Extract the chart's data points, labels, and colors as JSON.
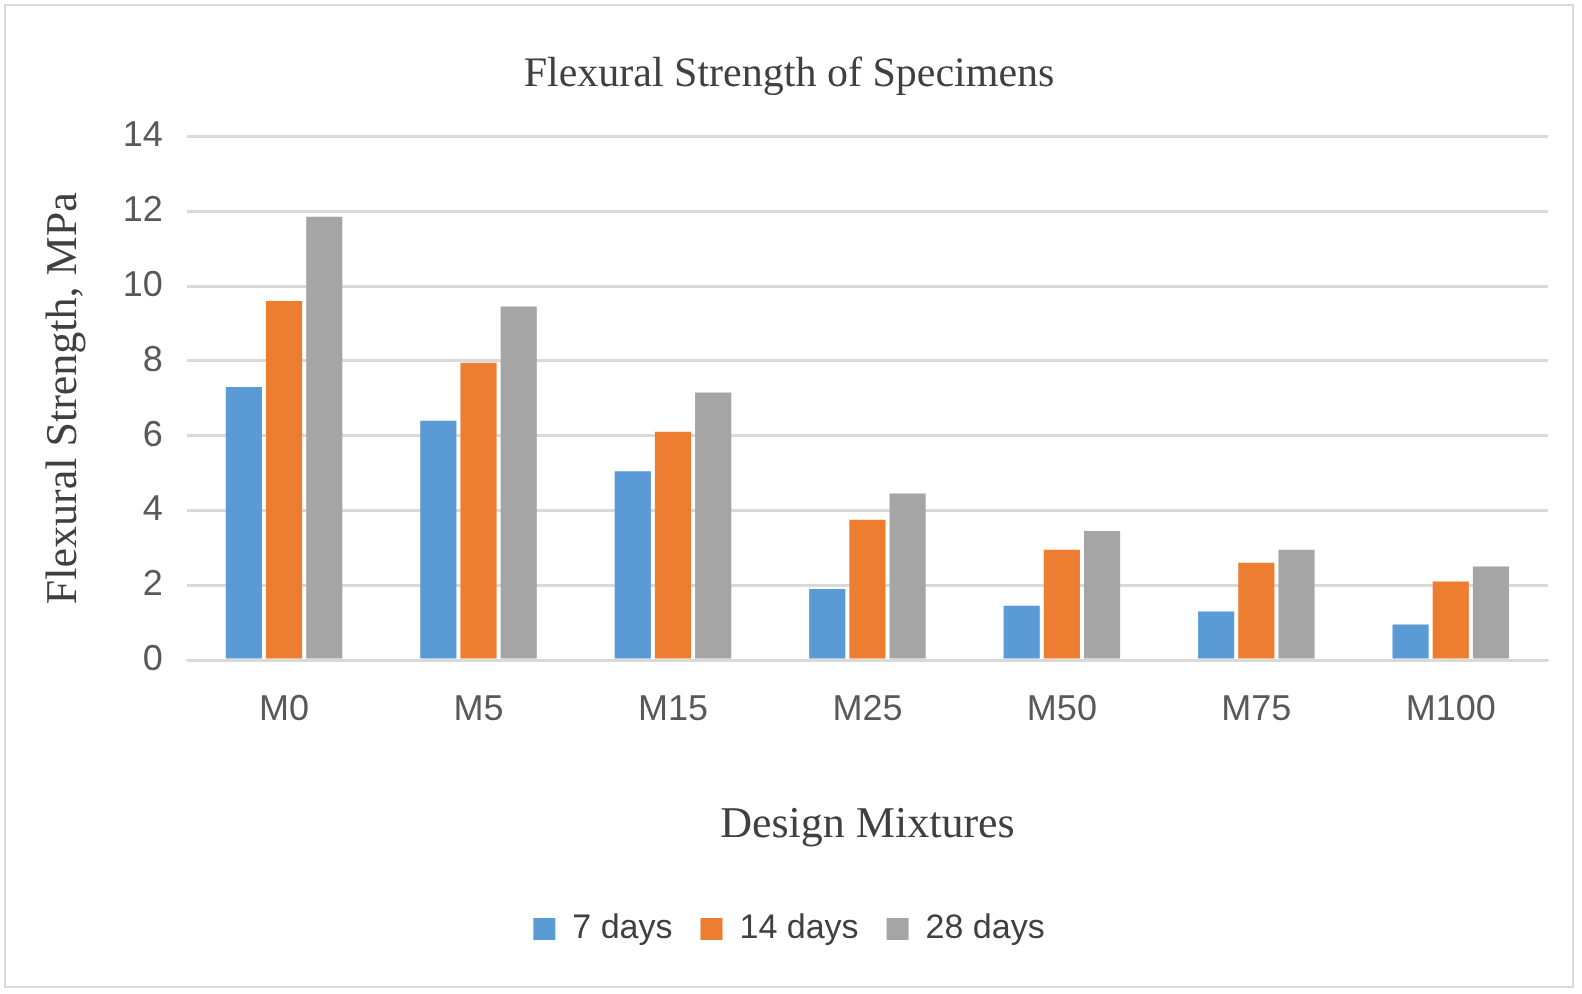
{
  "chart_data": {
    "type": "bar",
    "title": "Flexural Strength of Specimens",
    "xlabel": "Design Mixtures",
    "ylabel": "Flexural Strength, MPa",
    "categories": [
      "M0",
      "M5",
      "M15",
      "M25",
      "M50",
      "M75",
      "M100"
    ],
    "series": [
      {
        "name": "7 days",
        "color": "#5b9bd5",
        "values": [
          7.3,
          6.4,
          5.05,
          1.9,
          1.45,
          1.3,
          0.95
        ]
      },
      {
        "name": "14 days",
        "color": "#ed7d31",
        "values": [
          9.6,
          7.95,
          6.1,
          3.75,
          2.95,
          2.6,
          2.1
        ]
      },
      {
        "name": "28 days",
        "color": "#a5a5a5",
        "values": [
          11.85,
          9.45,
          7.15,
          4.45,
          3.45,
          2.95,
          2.5
        ]
      }
    ],
    "ylim": [
      0,
      14
    ],
    "yticks": [
      0,
      2,
      4,
      6,
      8,
      10,
      12,
      14
    ],
    "grid": "y",
    "legend": "bottom"
  }
}
